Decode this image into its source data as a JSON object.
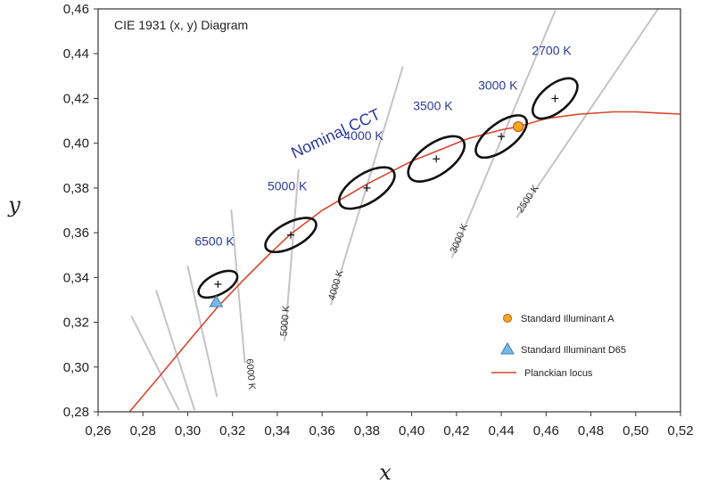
{
  "chart_data": {
    "type": "scatter",
    "title": "CIE 1931 (x, y) Diagram",
    "xlabel": "x",
    "ylabel": "y",
    "xlim": [
      0.26,
      0.52
    ],
    "ylim": [
      0.28,
      0.46
    ],
    "xticks": [
      "0,26",
      "0,28",
      "0,30",
      "0,32",
      "0,34",
      "0,36",
      "0,38",
      "0,40",
      "0,42",
      "0,44",
      "0,46",
      "0,48",
      "0,50",
      "0,52"
    ],
    "yticks": [
      "0,28",
      "0,30",
      "0,32",
      "0,34",
      "0,36",
      "0,38",
      "0,40",
      "0,42",
      "0,44",
      "0,46"
    ],
    "grid": false,
    "annotation": "Nominal CCT",
    "ellipses": [
      {
        "label": "6500 K",
        "cx": 0.3135,
        "cy": 0.337,
        "a": 0.0045,
        "b": 0.0095,
        "angle": 62
      },
      {
        "label": "5000 K",
        "cx": 0.346,
        "cy": 0.359,
        "a": 0.0055,
        "b": 0.0125,
        "angle": 62
      },
      {
        "label": "4000 K",
        "cx": 0.38,
        "cy": 0.38,
        "a": 0.0065,
        "b": 0.014,
        "angle": 58
      },
      {
        "label": "3500 K",
        "cx": 0.411,
        "cy": 0.393,
        "a": 0.007,
        "b": 0.0145,
        "angle": 55
      },
      {
        "label": "3000 K",
        "cx": 0.44,
        "cy": 0.403,
        "a": 0.006,
        "b": 0.0135,
        "angle": 53
      },
      {
        "label": "2700 K",
        "cx": 0.464,
        "cy": 0.42,
        "a": 0.006,
        "b": 0.012,
        "angle": 50
      }
    ],
    "isotherms": [
      {
        "label": "",
        "x1": 0.275,
        "y1": 0.3225,
        "x2": 0.296,
        "y2": 0.281
      },
      {
        "label": "",
        "x1": 0.286,
        "y1": 0.334,
        "x2": 0.303,
        "y2": 0.281
      },
      {
        "label": "",
        "x1": 0.3,
        "y1": 0.345,
        "x2": 0.313,
        "y2": 0.287
      },
      {
        "label": "6000 K",
        "x1": 0.3195,
        "y1": 0.37,
        "x2": 0.3255,
        "y2": 0.302
      },
      {
        "label": "5000 K",
        "x1": 0.3495,
        "y1": 0.388,
        "x2": 0.3433,
        "y2": 0.312
      },
      {
        "label": "4000 K",
        "x1": 0.396,
        "y1": 0.434,
        "x2": 0.364,
        "y2": 0.328
      },
      {
        "label": "3000 K",
        "x1": 0.464,
        "y1": 0.459,
        "x2": 0.418,
        "y2": 0.349
      },
      {
        "label": "2500 K",
        "x1": 0.51,
        "y1": 0.46,
        "x2": 0.447,
        "y2": 0.367
      }
    ],
    "planckian_locus": {
      "x": [
        0.274,
        0.285,
        0.295,
        0.305,
        0.3135,
        0.325,
        0.335,
        0.3455,
        0.36,
        0.3805,
        0.4,
        0.41,
        0.425,
        0.44,
        0.4476,
        0.46,
        0.475,
        0.49,
        0.5,
        0.51,
        0.52
      ],
      "y": [
        0.28,
        0.293,
        0.305,
        0.317,
        0.327,
        0.339,
        0.349,
        0.359,
        0.37,
        0.382,
        0.392,
        0.396,
        0.402,
        0.406,
        0.4074,
        0.411,
        0.413,
        0.414,
        0.414,
        0.4135,
        0.413
      ]
    },
    "points": [
      {
        "name": "Standard Illuminant A",
        "x": 0.4476,
        "y": 0.4074,
        "marker": "circle",
        "color": "#f5a623"
      },
      {
        "name": "Standard Illuminant D65",
        "x": 0.3127,
        "y": 0.329,
        "marker": "triangle",
        "color": "#7ab8e8"
      }
    ],
    "legend": {
      "placement": "bottom-right",
      "entries": [
        "Standard Illuminant A",
        "Standard Illuminant D65",
        "Planckian locus"
      ]
    },
    "colors": {
      "locus": "#d9452b",
      "ellipse": "#111111",
      "isotherm": "#c4c4c4",
      "label": "#2b3a9a"
    }
  }
}
